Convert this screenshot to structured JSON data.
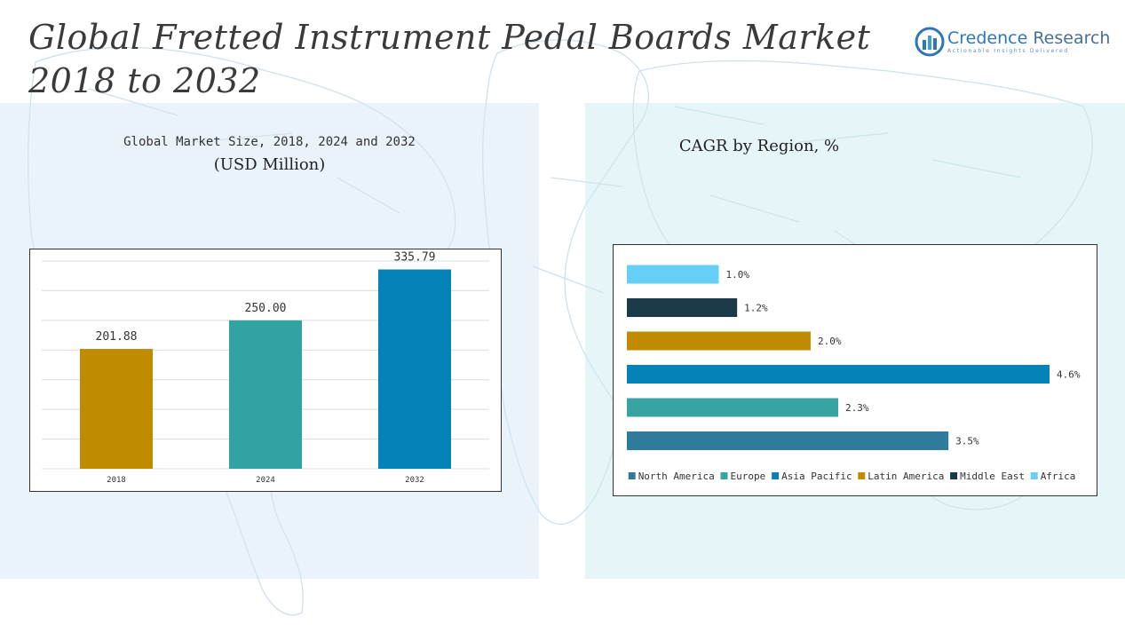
{
  "header": {
    "title_line1": "Global Fretted Instrument Pedal Boards Market",
    "title_line2": "2018 to 2032"
  },
  "logo": {
    "name_part1": "Credence",
    "name_part2": " Research",
    "tagline": "Actionable Insights Delivered",
    "colors": {
      "primary": "#2d77b8",
      "accent": "#3aa0d8"
    }
  },
  "left_panel": {
    "subtitle": "Global Market Size, 2018, 2024 and 2032",
    "unit": "(USD Million)"
  },
  "right_panel": {
    "title": "CAGR by Region, %"
  },
  "chart_data": [
    {
      "type": "bar",
      "title": "Global Market Size, 2018, 2024 and 2032",
      "ylabel": "(USD Million)",
      "categories": [
        "2018",
        "2024",
        "2032"
      ],
      "values": [
        201.88,
        250.0,
        335.79
      ],
      "value_labels": [
        "201.88",
        "250.00",
        "335.79"
      ],
      "colors": [
        "#bf8b00",
        "#31a3a2",
        "#0383b8"
      ],
      "ylim": [
        0,
        350
      ],
      "grid": true,
      "legend": "none"
    },
    {
      "type": "bar",
      "orientation": "horizontal",
      "title": "CAGR by Region, %",
      "categories": [
        "North America",
        "Europe",
        "Asia Pacific",
        "Latin America",
        "Middle East",
        "Africa"
      ],
      "values": [
        3.5,
        2.3,
        4.6,
        2.0,
        1.2,
        1.0
      ],
      "value_labels": [
        "3.5%",
        "2.3%",
        "4.6%",
        "2.0%",
        "1.2%",
        "1.0%"
      ],
      "colors": [
        "#2e7b9c",
        "#37a3a3",
        "#0383b8",
        "#bf8b00",
        "#1b3a48",
        "#65cff6"
      ],
      "xlim": [
        0,
        4.6
      ],
      "grid": false,
      "legend": "bottom"
    }
  ]
}
